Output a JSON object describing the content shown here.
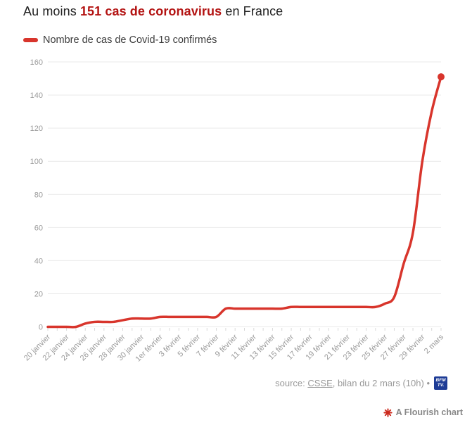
{
  "title": {
    "prefix": "Au moins ",
    "highlight": "151 cas de coronavirus",
    "suffix": " en France",
    "highlight_color": "#b31312"
  },
  "legend": {
    "label": "Nombre de cas de Covid-19 confirmés",
    "swatch_color": "#d8352c"
  },
  "footer": {
    "source_label": "source: ",
    "source_link": "CSSE",
    "source_rest": ", bilan du 2 mars (10h) •",
    "logo_text_top": "BFM",
    "logo_text_bottom": "TV.",
    "logo_bg": "#1e3c96"
  },
  "attribution": {
    "label": "A Flourish chart",
    "icon_color": "#cc2b1e"
  },
  "colors": {
    "line": "#d8352c",
    "title_highlight": "#b31312",
    "axis_text": "#9a9a9a",
    "gridline": "#e9e9e9",
    "tick": "#d9d9d9",
    "footer_text": "#999999",
    "bfmtv_navy": "#1e3c96"
  },
  "chart_data": {
    "type": "line",
    "title": "Au moins 151 cas de coronavirus en France",
    "xlabel": "",
    "ylabel": "",
    "ylim": [
      0,
      160
    ],
    "y_ticks": [
      0,
      20,
      40,
      60,
      80,
      100,
      120,
      140,
      160
    ],
    "grid": true,
    "legend_position": "top-left",
    "end_point_marker": true,
    "x_tick_every": 2,
    "x": [
      "20 janvier",
      "21 janvier",
      "22 janvier",
      "23 janvier",
      "24 janvier",
      "25 janvier",
      "26 janvier",
      "27 janvier",
      "28 janvier",
      "29 janvier",
      "30 janvier",
      "31 janvier",
      "1er février",
      "2 février",
      "3 février",
      "4 février",
      "5 février",
      "6 février",
      "7 février",
      "8 février",
      "9 février",
      "10 février",
      "11 février",
      "12 février",
      "13 février",
      "14 février",
      "15 février",
      "16 février",
      "17 février",
      "18 février",
      "19 février",
      "20 février",
      "21 février",
      "22 février",
      "23 février",
      "24 février",
      "25 février",
      "26 février",
      "27 février",
      "28 février",
      "29 février",
      "1er mars",
      "2 mars"
    ],
    "series": [
      {
        "name": "Nombre de cas de Covid-19 confirmés",
        "color": "#d8352c",
        "values": [
          0,
          0,
          0,
          0,
          2,
          3,
          3,
          3,
          4,
          5,
          5,
          5,
          6,
          6,
          6,
          6,
          6,
          6,
          6,
          11,
          11,
          11,
          11,
          11,
          11,
          11,
          12,
          12,
          12,
          12,
          12,
          12,
          12,
          12,
          12,
          12,
          14,
          18,
          38,
          57,
          100,
          130,
          151
        ]
      }
    ]
  }
}
